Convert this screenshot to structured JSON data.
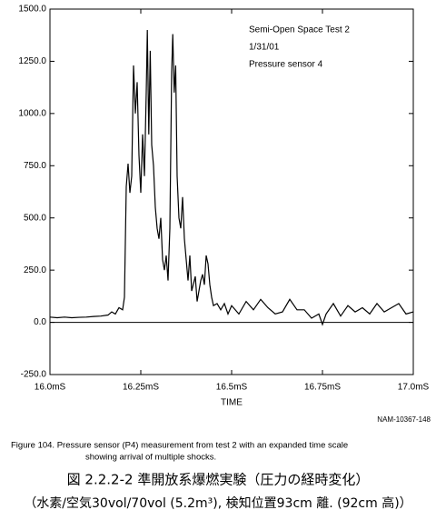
{
  "chart_data": {
    "type": "line",
    "color": "#000000",
    "x_label": "TIME",
    "annotations": [
      "Semi-Open Space Test 2",
      "1/31/01",
      "Pressure sensor 4"
    ],
    "id_label": "NAM-10367-148",
    "caption": [
      "Figure 104.   Pressure sensor (P4) measurement from test 2 with an expanded time scale",
      "showing arrival of multiple shocks."
    ],
    "title_lines": [
      "図 2.2.2-2  準開放系爆燃実験（圧力の経時変化）",
      "（水素/空気30vol/70vol (5.2m³), 検知位置93cm 離. (92cm 高)）"
    ],
    "xlim": [
      16.0,
      17.0
    ],
    "ylim": [
      -250,
      1500
    ],
    "xticks": [
      {
        "value": 16.0,
        "label": "16.0mS"
      },
      {
        "value": 16.25,
        "label": "16.25mS"
      },
      {
        "value": 16.5,
        "label": "16.5mS"
      },
      {
        "value": 16.75,
        "label": "16.75mS"
      },
      {
        "value": 17.0,
        "label": "17.0mS"
      }
    ],
    "yticks": [
      {
        "value": -250,
        "label": "-250.0"
      },
      {
        "value": 0,
        "label": "0.0"
      },
      {
        "value": 250,
        "label": "250.0"
      },
      {
        "value": 500,
        "label": "500.0"
      },
      {
        "value": 750,
        "label": "750.0"
      },
      {
        "value": 1000,
        "label": "1000.0"
      },
      {
        "value": 1250,
        "label": "1250.0"
      },
      {
        "value": 1500,
        "label": "1500.0"
      }
    ],
    "x": [
      16.0,
      16.02,
      16.04,
      16.06,
      16.08,
      16.1,
      16.12,
      16.14,
      16.16,
      16.17,
      16.18,
      16.19,
      16.2,
      16.205,
      16.21,
      16.215,
      16.22,
      16.225,
      16.23,
      16.235,
      16.24,
      16.245,
      16.25,
      16.255,
      16.26,
      16.265,
      16.268,
      16.272,
      16.276,
      16.28,
      16.285,
      16.29,
      16.295,
      16.3,
      16.305,
      16.31,
      16.315,
      16.32,
      16.325,
      16.33,
      16.335,
      16.338,
      16.342,
      16.346,
      16.35,
      16.355,
      16.36,
      16.365,
      16.37,
      16.375,
      16.38,
      16.385,
      16.39,
      16.4,
      16.405,
      16.41,
      16.415,
      16.42,
      16.425,
      16.43,
      16.435,
      16.44,
      16.445,
      16.45,
      16.46,
      16.47,
      16.48,
      16.49,
      16.5,
      16.52,
      16.54,
      16.56,
      16.58,
      16.6,
      16.62,
      16.64,
      16.66,
      16.68,
      16.7,
      16.72,
      16.74,
      16.75,
      16.76,
      16.78,
      16.8,
      16.82,
      16.84,
      16.86,
      16.88,
      16.9,
      16.92,
      16.94,
      16.96,
      16.98,
      17.0
    ],
    "values": [
      25,
      22,
      25,
      22,
      24,
      25,
      28,
      30,
      35,
      50,
      40,
      70,
      60,
      120,
      650,
      760,
      620,
      700,
      1230,
      1000,
      1150,
      800,
      620,
      900,
      700,
      1100,
      1400,
      900,
      1300,
      850,
      750,
      550,
      450,
      400,
      500,
      300,
      250,
      320,
      200,
      450,
      1200,
      1380,
      1100,
      1230,
      700,
      500,
      450,
      600,
      400,
      300,
      200,
      320,
      150,
      220,
      100,
      150,
      200,
      230,
      180,
      320,
      280,
      180,
      120,
      80,
      90,
      60,
      90,
      40,
      80,
      40,
      100,
      60,
      110,
      70,
      40,
      50,
      110,
      60,
      60,
      20,
      40,
      -10,
      40,
      90,
      30,
      80,
      50,
      70,
      40,
      90,
      50,
      70,
      90,
      40,
      50
    ]
  }
}
